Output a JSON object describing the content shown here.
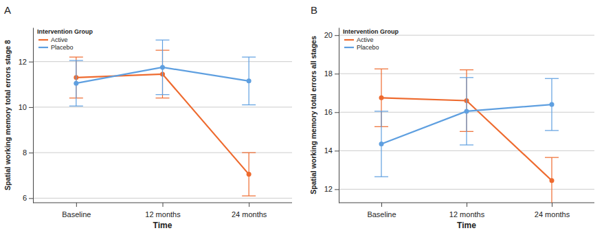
{
  "chart_data": [
    {
      "type": "line",
      "title": "A",
      "x_label": "Time",
      "y_label": "Spatial working memory total errors stage 8",
      "legend_title": "Intervention Group",
      "legend": "upper left",
      "grid": true,
      "marker": "circle",
      "categories": [
        "Baseline",
        "12 months",
        "24 months"
      ],
      "series": [
        {
          "name": "Active",
          "color": "#ee6a2e",
          "values": [
            11.3,
            11.45,
            7.05
          ],
          "error": [
            0.9,
            1.05,
            0.95
          ]
        },
        {
          "name": "Placebo",
          "color": "#5e9fe0",
          "values": [
            11.05,
            11.75,
            11.15
          ],
          "error": [
            1.0,
            1.2,
            1.05
          ]
        }
      ],
      "ylim": [
        5.8,
        13.5
      ],
      "yticks": [
        6,
        8,
        10,
        12
      ]
    },
    {
      "type": "line",
      "title": "B",
      "x_label": "Time",
      "y_label": "Spatial working memory total errors all stages",
      "legend_title": "Intervention Group",
      "legend": "upper left",
      "grid": true,
      "marker": "circle",
      "categories": [
        "Baseline",
        "12 months",
        "24 months"
      ],
      "series": [
        {
          "name": "Active",
          "color": "#ee6a2e",
          "values": [
            16.75,
            16.6,
            12.45
          ],
          "error": [
            1.5,
            1.6,
            1.2
          ]
        },
        {
          "name": "Placebo",
          "color": "#5e9fe0",
          "values": [
            14.35,
            16.05,
            16.4
          ],
          "error": [
            1.7,
            1.75,
            1.35
          ]
        }
      ],
      "ylim": [
        11.3,
        20.4
      ],
      "yticks": [
        12,
        14,
        16,
        18,
        20
      ]
    }
  ]
}
